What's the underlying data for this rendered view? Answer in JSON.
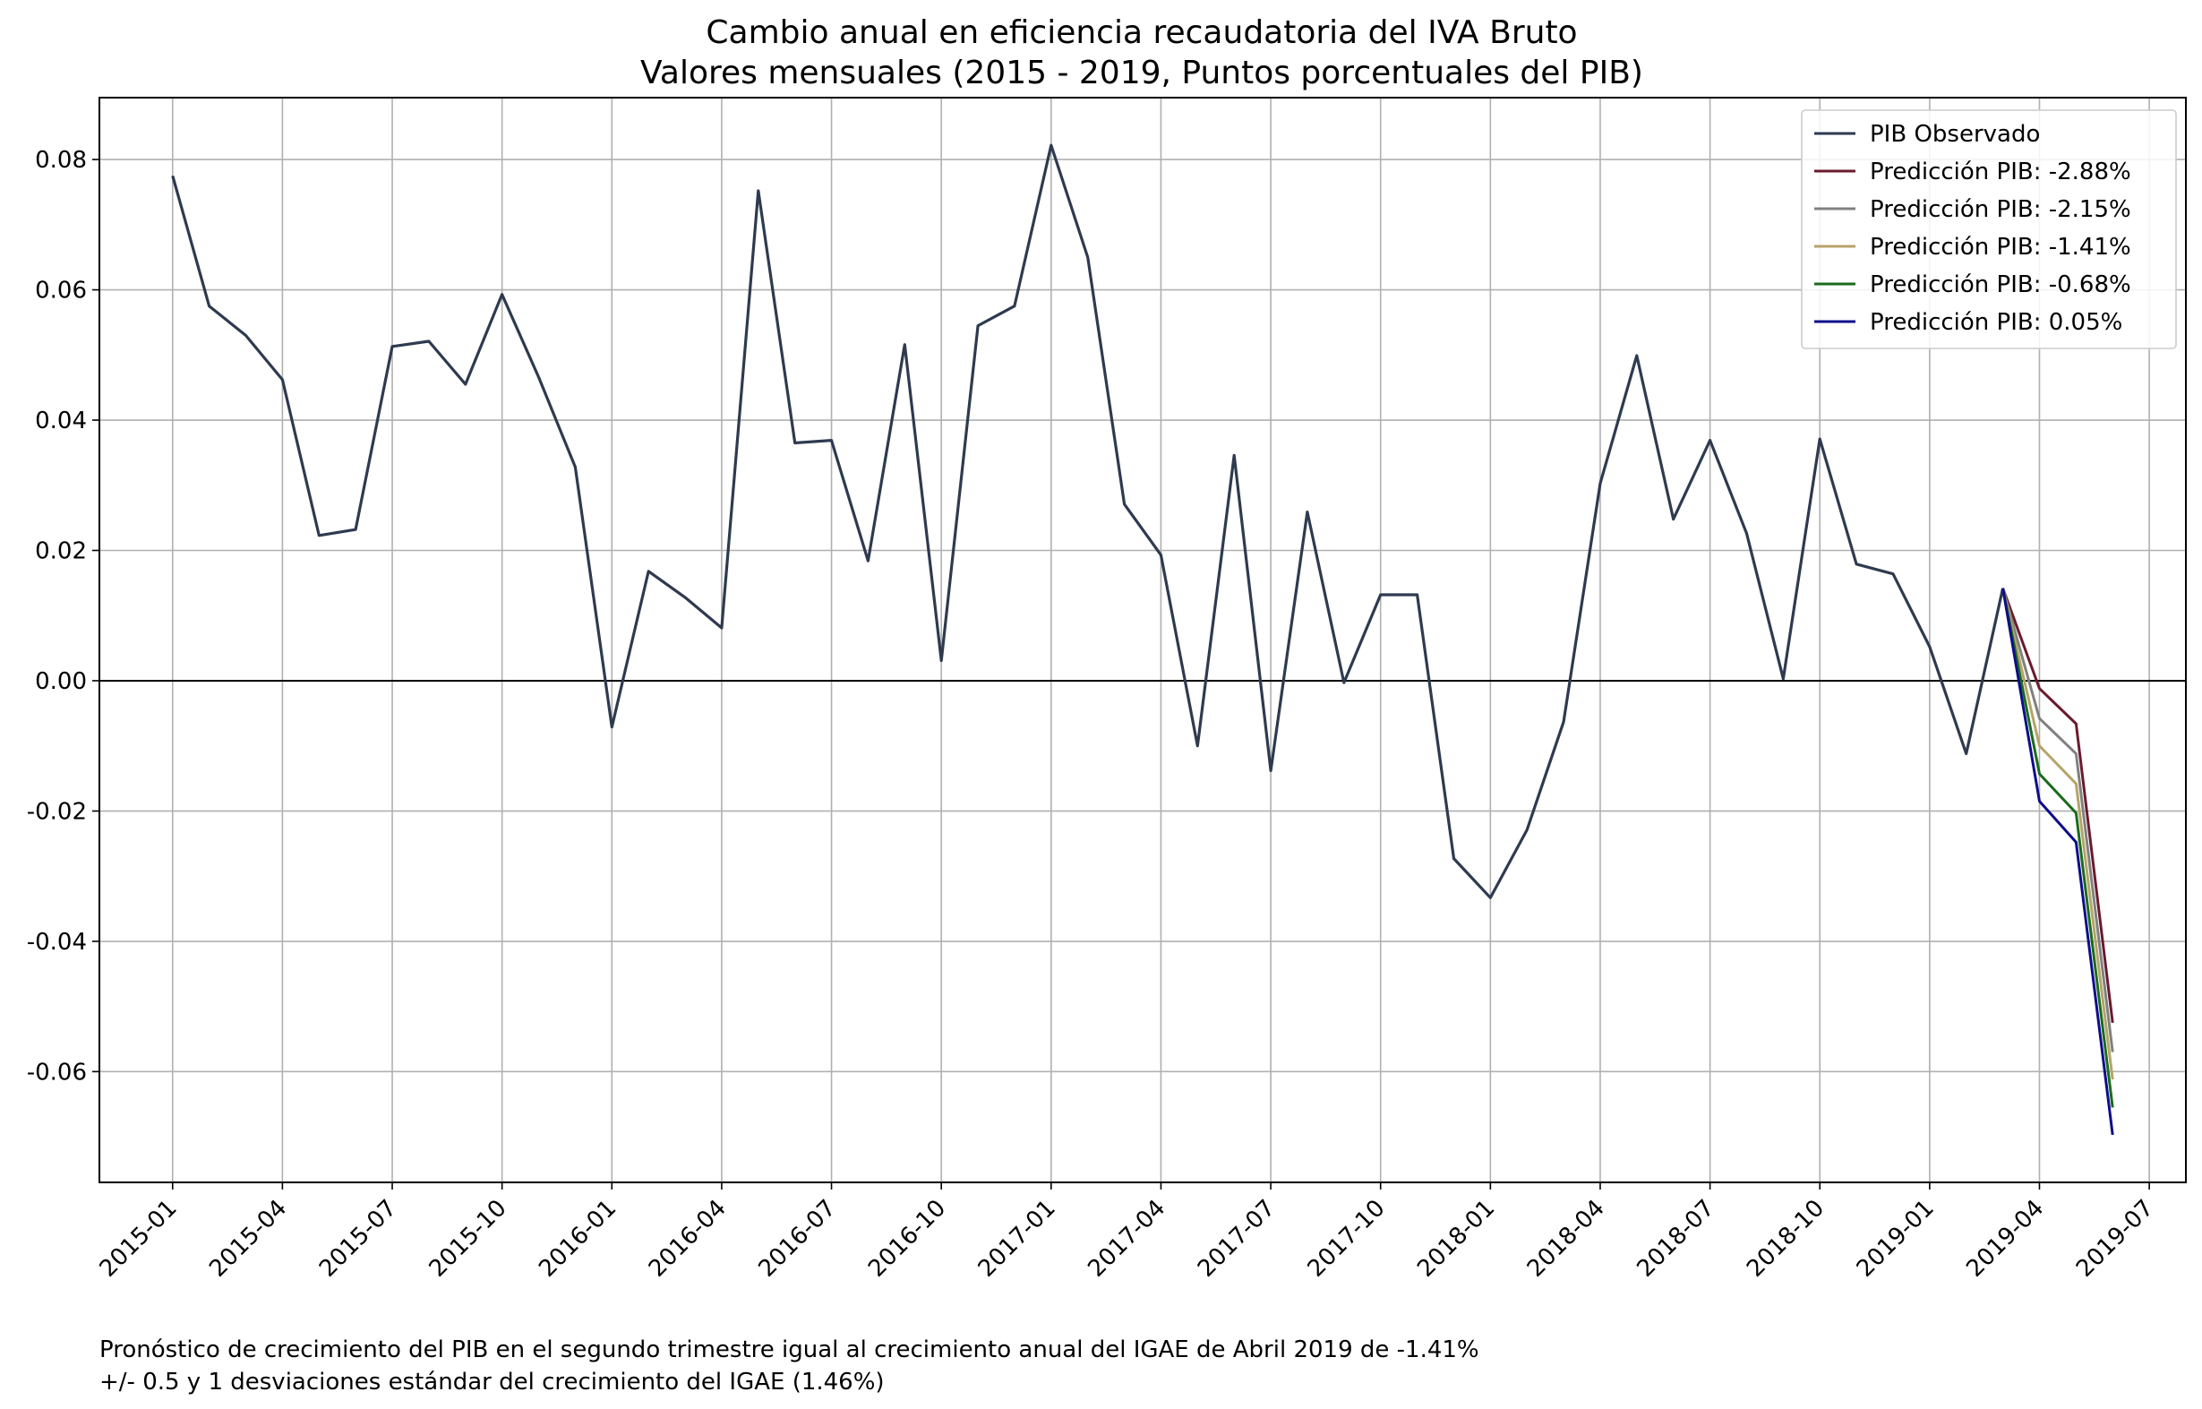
{
  "footnote": {
    "line1": "Pronóstico de crecimiento del PIB en el segundo trimestre igual al crecimiento anual del IGAE de Abril 2019 de -1.41%",
    "line2": "+/- 0.5 y 1 desviaciones estándar del crecimiento del IGAE (1.46%)"
  },
  "chart_data": {
    "type": "line",
    "title": "Cambio anual en eficiencia recaudatoria del IVA Bruto",
    "subtitle": "Valores mensuales (2015 - 2019, Puntos porcentuales del PIB)",
    "xlabel": "",
    "ylabel": "",
    "x_ticks": [
      "2015-01",
      "2015-04",
      "2015-07",
      "2015-10",
      "2016-01",
      "2016-04",
      "2016-07",
      "2016-10",
      "2017-01",
      "2017-04",
      "2017-07",
      "2017-10",
      "2018-01",
      "2018-04",
      "2018-07",
      "2018-10",
      "2019-01",
      "2019-04",
      "2019-07"
    ],
    "y_ticks": [
      0.08,
      0.06,
      0.04,
      0.02,
      0.0,
      -0.02,
      -0.04,
      -0.06
    ],
    "y_tick_labels": [
      "0.08",
      "0.06",
      "0.04",
      "0.02",
      "0.00",
      "-0.02",
      "-0.04",
      "-0.06"
    ],
    "xlim": [
      "2014-11",
      "2019-08"
    ],
    "ylim": [
      -0.077,
      0.0895
    ],
    "grid": true,
    "zero_line": true,
    "legend": "top-right",
    "series": [
      {
        "name": "PIB Observado",
        "color": "#2e3a4f",
        "x": [
          "2015-01",
          "2015-02",
          "2015-03",
          "2015-04",
          "2015-05",
          "2015-06",
          "2015-07",
          "2015-08",
          "2015-09",
          "2015-10",
          "2015-11",
          "2015-12",
          "2016-01",
          "2016-02",
          "2016-03",
          "2016-04",
          "2016-05",
          "2016-06",
          "2016-07",
          "2016-08",
          "2016-09",
          "2016-10",
          "2016-11",
          "2016-12",
          "2017-01",
          "2017-02",
          "2017-03",
          "2017-04",
          "2017-05",
          "2017-06",
          "2017-07",
          "2017-08",
          "2017-09",
          "2017-10",
          "2017-11",
          "2017-12",
          "2018-01",
          "2018-02",
          "2018-03",
          "2018-04",
          "2018-05",
          "2018-06",
          "2018-07",
          "2018-08",
          "2018-09",
          "2018-10",
          "2018-11",
          "2018-12",
          "2019-01",
          "2019-02",
          "2019-03"
        ],
        "values": [
          0.0775,
          0.0575,
          0.053,
          0.0462,
          0.0223,
          0.0232,
          0.0513,
          0.0521,
          0.0455,
          0.0593,
          0.0466,
          0.0328,
          -0.0071,
          0.0168,
          0.0128,
          0.0081,
          0.0752,
          0.0365,
          0.0369,
          0.0184,
          0.0516,
          0.0031,
          0.0545,
          0.0575,
          0.0822,
          0.065,
          0.0271,
          0.0193,
          -0.01,
          0.0346,
          -0.0138,
          0.0259,
          -0.0003,
          0.0132,
          0.0132,
          -0.0273,
          -0.0333,
          -0.0229,
          -0.0063,
          0.0303,
          0.0499,
          0.0248,
          0.0369,
          0.0226,
          0.0003,
          0.0371,
          0.0179,
          0.0164,
          0.0052,
          -0.0112,
          0.0142
        ]
      },
      {
        "name": "Predicción PIB: -2.88%",
        "color": "#6b1a2e",
        "x": [
          "2019-03",
          "2019-04",
          "2019-05",
          "2019-06"
        ],
        "values": [
          0.0142,
          -0.0012,
          -0.0066,
          -0.0525
        ]
      },
      {
        "name": "Predicción PIB: -2.15%",
        "color": "#808080",
        "x": [
          "2019-03",
          "2019-04",
          "2019-05",
          "2019-06"
        ],
        "values": [
          0.0142,
          -0.0058,
          -0.0112,
          -0.057
        ]
      },
      {
        "name": "Predicción PIB: -1.41%",
        "color": "#b5a46a",
        "x": [
          "2019-03",
          "2019-04",
          "2019-05",
          "2019-06"
        ],
        "values": [
          0.0142,
          -0.01,
          -0.0158,
          -0.0612
        ]
      },
      {
        "name": "Predicción PIB: -0.68%",
        "color": "#1a6b1a",
        "x": [
          "2019-03",
          "2019-04",
          "2019-05",
          "2019-06"
        ],
        "values": [
          0.0142,
          -0.0143,
          -0.0203,
          -0.0655
        ]
      },
      {
        "name": "Predicción PIB: 0.05%",
        "color": "#0d0d8a",
        "x": [
          "2019-03",
          "2019-04",
          "2019-05",
          "2019-06"
        ],
        "values": [
          0.0142,
          -0.0185,
          -0.0248,
          -0.0697
        ]
      }
    ]
  }
}
